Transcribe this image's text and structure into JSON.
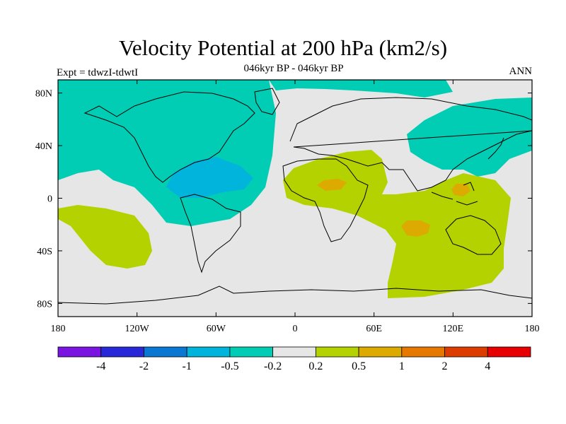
{
  "header": {
    "title": "Velocity Potential at 200 hPa (km2/s)",
    "subtitle": "046kyr BP - 046kyr BP",
    "left_label": "Expt = tdwzI-tdwtI",
    "right_label": "ANN"
  },
  "axes": {
    "y_ticks": [
      {
        "label": "80N",
        "lat": 80
      },
      {
        "label": "40N",
        "lat": 40
      },
      {
        "label": "0",
        "lat": 0
      },
      {
        "label": "40S",
        "lat": -40
      },
      {
        "label": "80S",
        "lat": -80
      }
    ],
    "x_ticks": [
      {
        "label": "180",
        "lon": -180
      },
      {
        "label": "120W",
        "lon": -120
      },
      {
        "label": "60W",
        "lon": -60
      },
      {
        "label": "0",
        "lon": 0
      },
      {
        "label": "60E",
        "lon": 60
      },
      {
        "label": "120E",
        "lon": 120
      },
      {
        "label": "180",
        "lon": 180
      }
    ],
    "lon_range": [
      -180,
      180
    ],
    "lat_range": [
      -90,
      90
    ]
  },
  "colorbar": {
    "colors": [
      "#7a14e0",
      "#2828d8",
      "#0a78d2",
      "#00b4dc",
      "#00cdb4",
      "#e6e6e6",
      "#b4d200",
      "#dcaa00",
      "#e67800",
      "#dc3c00",
      "#e60000"
    ],
    "labels": [
      "-4",
      "-2",
      "-1",
      "-0.5",
      "-0.2",
      "0.2",
      "0.5",
      "1",
      "2",
      "4"
    ]
  },
  "field_colors": {
    "background": "#e6e6e6",
    "neg_02": "#00cdb4",
    "neg_05": "#00b4dc",
    "pos_02": "#b4d200",
    "pos_05": "#dcaa00"
  }
}
